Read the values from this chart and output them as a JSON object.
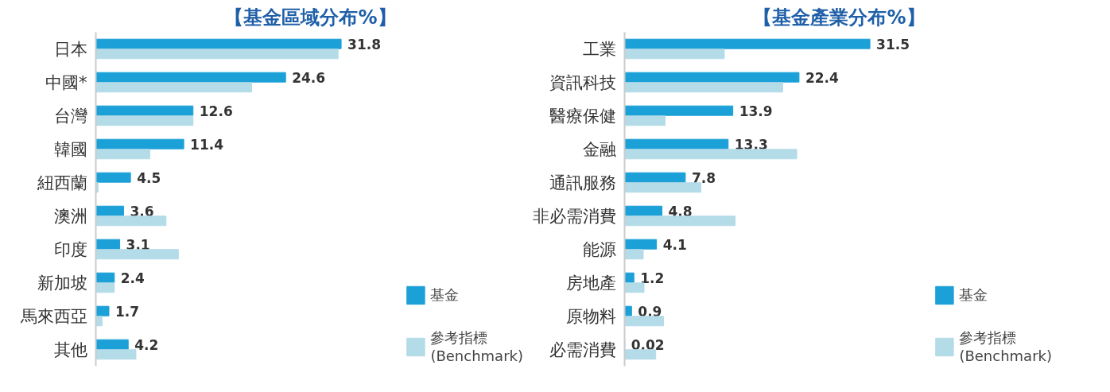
{
  "chart_data": [
    {
      "type": "bar",
      "orientation": "horizontal",
      "title": "【基金區域分布%】",
      "categories": [
        "日本",
        "中國*",
        "台灣",
        "韓國",
        "紐西蘭",
        "澳洲",
        "印度",
        "新加坡",
        "馬來西亞",
        "其他"
      ],
      "tick_labels": "y",
      "legend": "right",
      "grid": false,
      "series": [
        {
          "name": "基金",
          "color": "#1ba1d8",
          "values": [
            31.8,
            24.6,
            12.6,
            11.4,
            4.5,
            3.6,
            3.1,
            2.4,
            1.7,
            4.2
          ],
          "value_labels": [
            "31.8",
            "24.6",
            "12.6",
            "11.4",
            "4.5",
            "3.6",
            "3.1",
            "2.4",
            "1.7",
            "4.2"
          ]
        },
        {
          "name": "參考指標\n(Benchmark)",
          "color": "#b3dbe8",
          "values": [
            31.4,
            20.2,
            12.6,
            7.0,
            0.3,
            9.1,
            10.7,
            2.4,
            0.8,
            5.2
          ]
        }
      ]
    },
    {
      "type": "bar",
      "orientation": "horizontal",
      "title": "【基金產業分布%】",
      "categories": [
        "工業",
        "資訊科技",
        "醫療保健",
        "金融",
        "通訊服務",
        "非必需消費",
        "能源",
        "房地產",
        "原物料",
        "必需消費"
      ],
      "tick_labels": "y",
      "legend": "right",
      "grid": false,
      "series": [
        {
          "name": "基金",
          "color": "#1ba1d8",
          "values": [
            31.5,
            22.4,
            13.9,
            13.3,
            7.8,
            4.8,
            4.1,
            1.2,
            0.9,
            0.02
          ],
          "value_labels": [
            "31.5",
            "22.4",
            "13.9",
            "13.3",
            "7.8",
            "4.8",
            "4.1",
            "1.2",
            "0.9",
            "0.02"
          ]
        },
        {
          "name": "參考指標\n(Benchmark)",
          "color": "#b3dbe8",
          "values": [
            12.8,
            20.3,
            5.2,
            22.1,
            9.8,
            14.2,
            2.4,
            2.5,
            5.0,
            4.0
          ]
        }
      ]
    }
  ]
}
